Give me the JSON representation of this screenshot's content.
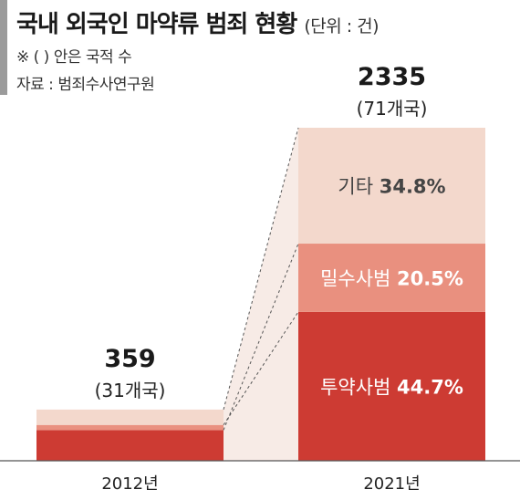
{
  "header": {
    "title": "국내 외국인 마약류 범죄 현황",
    "unit": "(단위 : 건)",
    "note": "※ (   ) 안은 국적 수",
    "source": "자료 : 범죄수사연구원"
  },
  "colors": {
    "segment_top": "#f3d8cc",
    "segment_mid": "#e9907f",
    "segment_bottom": "#cd3b33",
    "connector_fill": "#f7ebe6"
  },
  "chart_data": {
    "type": "bar",
    "stacked": true,
    "categories": [
      "2012년",
      "2021년"
    ],
    "totals": [
      359,
      2335
    ],
    "totals_label": [
      "359",
      "2335"
    ],
    "countries_label": [
      "(31개국)",
      "(71개국)"
    ],
    "segments": [
      {
        "name": "투약사범",
        "share_2021": 44.7,
        "pct_label": "44.7%"
      },
      {
        "name": "밀수사범",
        "share_2021": 20.5,
        "pct_label": "20.5%"
      },
      {
        "name": "기타",
        "share_2021": 34.8,
        "pct_label": "34.8%"
      }
    ],
    "share_2012_estimate": [
      60,
      10,
      30
    ]
  }
}
